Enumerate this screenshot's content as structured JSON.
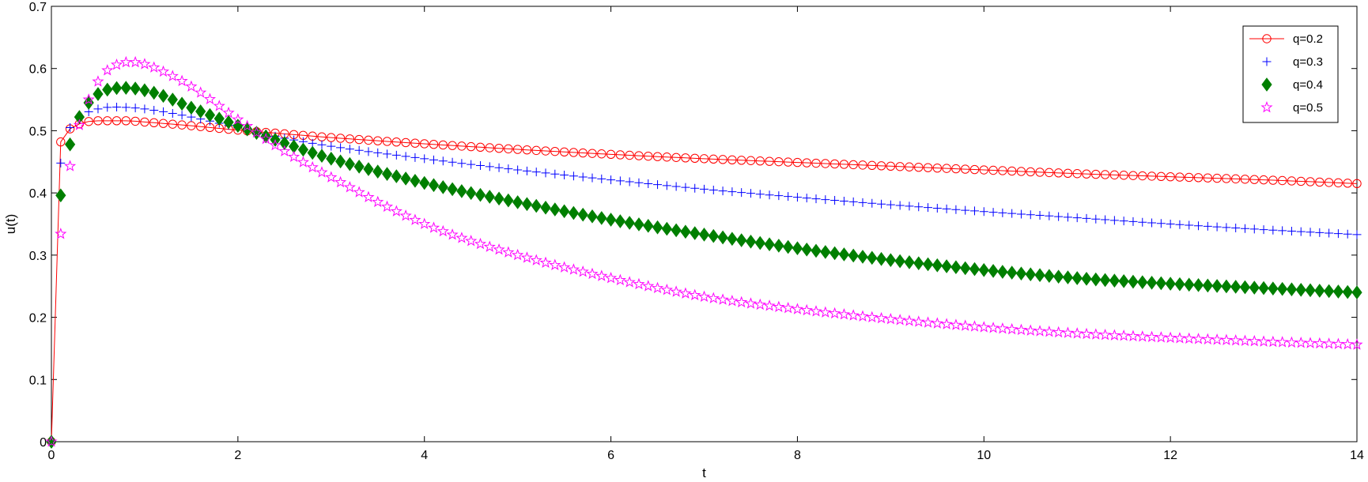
{
  "colors": {
    "q02": "#ff0000",
    "q03": "#0000ff",
    "q04": "#007f00",
    "q05": "#ff00ff",
    "axes": "#000000",
    "background": "#ffffff"
  },
  "chart_data": {
    "type": "scatter",
    "title": "",
    "xlabel": "t",
    "ylabel": "u(t)",
    "xlim": [
      0,
      14
    ],
    "ylim": [
      0,
      0.7
    ],
    "xticks": [
      0,
      2,
      4,
      6,
      8,
      10,
      12,
      14
    ],
    "yticks": [
      0,
      0.1,
      0.2,
      0.3,
      0.4,
      0.5,
      0.6,
      0.7
    ],
    "xtick_labels": [
      "0",
      "2",
      "4",
      "6",
      "8",
      "10",
      "12",
      "14"
    ],
    "ytick_labels": [
      "0",
      "0.1",
      "0.2",
      "0.3",
      "0.4",
      "0.5",
      "0.6",
      "0.7"
    ],
    "grid": false,
    "legend_position": "top-right",
    "sample_step": 0.1,
    "series": [
      {
        "name": "q=0.2",
        "marker": "circle",
        "line": true,
        "color_key": "q02",
        "x": [
          0,
          0.1,
          0.2,
          0.3,
          0.5,
          0.8,
          1.0,
          1.5,
          2.0,
          2.5,
          3.0,
          4.0,
          5.0,
          6.0,
          7.0,
          8.0,
          9.0,
          10.0,
          11.0,
          12.0,
          13.0,
          14.0
        ],
        "y": [
          0,
          0.482,
          0.503,
          0.511,
          0.516,
          0.516,
          0.514,
          0.508,
          0.501,
          0.495,
          0.489,
          0.479,
          0.47,
          0.462,
          0.455,
          0.449,
          0.443,
          0.437,
          0.431,
          0.426,
          0.421,
          0.415
        ]
      },
      {
        "name": "q=0.3",
        "marker": "plus",
        "line": false,
        "color_key": "q03",
        "x": [
          0,
          0.1,
          0.2,
          0.3,
          0.5,
          0.7,
          1.0,
          1.5,
          2.0,
          2.5,
          3.0,
          4.0,
          5.0,
          6.0,
          7.0,
          8.0,
          9.0,
          10.0,
          11.0,
          12.0,
          13.0,
          14.0
        ],
        "y": [
          0,
          0.448,
          0.505,
          0.522,
          0.535,
          0.538,
          0.535,
          0.522,
          0.505,
          0.488,
          0.475,
          0.455,
          0.437,
          0.421,
          0.406,
          0.393,
          0.381,
          0.37,
          0.36,
          0.35,
          0.341,
          0.333
        ]
      },
      {
        "name": "q=0.4",
        "marker": "diamond",
        "line": false,
        "color_key": "q04",
        "x": [
          0,
          0.1,
          0.2,
          0.3,
          0.4,
          0.5,
          0.6,
          0.8,
          1.0,
          1.2,
          1.5,
          2.0,
          2.5,
          3.0,
          4.0,
          5.0,
          6.0,
          7.0,
          8.0,
          9.0,
          10.0,
          11.0,
          12.0,
          13.0,
          14.0
        ],
        "y": [
          0,
          0.396,
          0.478,
          0.522,
          0.545,
          0.559,
          0.566,
          0.569,
          0.565,
          0.556,
          0.537,
          0.508,
          0.48,
          0.455,
          0.416,
          0.385,
          0.357,
          0.333,
          0.311,
          0.292,
          0.276,
          0.263,
          0.254,
          0.247,
          0.24
        ]
      },
      {
        "name": "q=0.5",
        "marker": "star",
        "line": false,
        "color_key": "q05",
        "x": [
          0,
          0.1,
          0.2,
          0.3,
          0.4,
          0.5,
          0.6,
          0.7,
          0.8,
          0.9,
          1.0,
          1.2,
          1.5,
          2.0,
          2.5,
          3.0,
          4.0,
          5.0,
          6.0,
          7.0,
          8.0,
          9.0,
          10.0,
          11.0,
          12.0,
          13.0,
          14.0
        ],
        "y": [
          0,
          0.334,
          0.443,
          0.509,
          0.55,
          0.579,
          0.597,
          0.606,
          0.61,
          0.61,
          0.607,
          0.595,
          0.571,
          0.518,
          0.467,
          0.425,
          0.35,
          0.3,
          0.263,
          0.233,
          0.213,
          0.197,
          0.184,
          0.174,
          0.167,
          0.161,
          0.156
        ]
      }
    ]
  }
}
